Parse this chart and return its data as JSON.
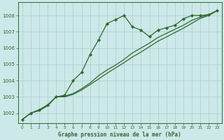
{
  "bg_color": "#cce8e8",
  "grid_color": "#aacccc",
  "line_color": "#2d6a2d",
  "marker_color": "#2d6a2d",
  "xlabel": "Graphe pression niveau de la mer (hPa)",
  "xlim": [
    -0.5,
    23.5
  ],
  "ylim": [
    1001.4,
    1008.8
  ],
  "yticks": [
    1002,
    1003,
    1004,
    1005,
    1006,
    1007,
    1008
  ],
  "xticks": [
    0,
    1,
    2,
    3,
    4,
    5,
    6,
    7,
    8,
    9,
    10,
    11,
    12,
    13,
    14,
    15,
    16,
    17,
    18,
    19,
    20,
    21,
    22,
    23
  ],
  "series1_x": [
    0,
    1,
    2,
    3,
    4,
    5,
    6,
    7,
    8,
    9,
    10,
    11,
    12,
    13,
    14,
    15,
    16,
    17,
    18,
    19,
    20,
    21,
    22,
    23
  ],
  "series1_y": [
    1001.6,
    1002.0,
    1002.2,
    1002.5,
    1003.0,
    1003.1,
    1004.0,
    1004.5,
    1005.6,
    1006.5,
    1007.5,
    1007.75,
    1008.0,
    1007.3,
    1007.1,
    1006.7,
    1007.1,
    1007.25,
    1007.4,
    1007.8,
    1008.0,
    1008.0,
    1008.05,
    1008.3
  ],
  "series2_x": [
    0,
    1,
    2,
    3,
    4,
    5,
    6,
    7,
    8,
    9,
    10,
    11,
    12,
    13,
    14,
    15,
    16,
    17,
    18,
    19,
    20,
    21,
    22,
    23
  ],
  "series2_y": [
    1001.6,
    1002.0,
    1002.2,
    1002.5,
    1003.0,
    1003.05,
    1003.2,
    1003.5,
    1003.85,
    1004.3,
    1004.65,
    1004.95,
    1005.3,
    1005.7,
    1006.0,
    1006.3,
    1006.65,
    1006.9,
    1007.15,
    1007.4,
    1007.7,
    1007.9,
    1008.05,
    1008.3
  ],
  "series3_x": [
    0,
    1,
    2,
    3,
    4,
    5,
    6,
    7,
    8,
    9,
    10,
    11,
    12,
    13,
    14,
    15,
    16,
    17,
    18,
    19,
    20,
    21,
    22,
    23
  ],
  "series3_y": [
    1001.6,
    1002.0,
    1002.15,
    1002.45,
    1003.0,
    1003.0,
    1003.15,
    1003.42,
    1003.75,
    1004.1,
    1004.45,
    1004.78,
    1005.1,
    1005.45,
    1005.75,
    1006.08,
    1006.42,
    1006.68,
    1006.95,
    1007.22,
    1007.52,
    1007.82,
    1008.0,
    1008.3
  ]
}
